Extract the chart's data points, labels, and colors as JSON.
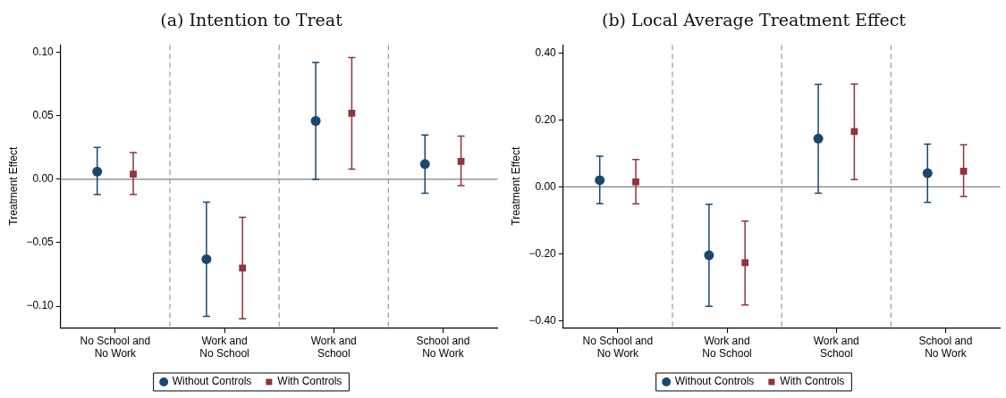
{
  "chart_data": [
    {
      "type": "scatter",
      "title": "(a) Intention to Treat",
      "ylabel": "Treatment Effect",
      "categories": [
        "No School and\nNo Work",
        "Work and\nNo School",
        "Work and\nSchool",
        "School and\nNo Work"
      ],
      "series": [
        {
          "name": "Without Controls",
          "color": "#1a476f",
          "marker": "circle",
          "values": [
            0.006,
            -0.063,
            0.046,
            0.012
          ],
          "errors": [
            [
              -0.012,
              0.025
            ],
            [
              -0.108,
              -0.018
            ],
            [
              0.0,
              0.092
            ],
            [
              -0.011,
              0.035
            ]
          ]
        },
        {
          "name": "With Controls",
          "color": "#90353b",
          "marker": "square",
          "values": [
            0.004,
            -0.07,
            0.052,
            0.014
          ],
          "errors": [
            [
              -0.012,
              0.021
            ],
            [
              -0.11,
              -0.03
            ],
            [
              0.008,
              0.096
            ],
            [
              -0.005,
              0.034
            ]
          ]
        }
      ],
      "ylim": [
        -0.117,
        0.106
      ],
      "yticks": [
        {
          "value": -0.1,
          "label": "−0.10"
        },
        {
          "value": -0.05,
          "label": "−0.05"
        },
        {
          "value": 0,
          "label": "0.00"
        },
        {
          "value": 0.05,
          "label": "0.05"
        },
        {
          "value": 0.1,
          "label": "0.10"
        }
      ],
      "ref_lines": [
        {
          "axis": "y",
          "value": 0,
          "color": "#808080",
          "line_style": "solid"
        }
      ],
      "legend": "bottom",
      "grid": false
    },
    {
      "type": "scatter",
      "title": "(b) Local Average Treatment Effect",
      "ylabel": "Treatment Effect",
      "categories": [
        "No School and\nNo Work",
        "Work and\nNo School",
        "Work and\nSchool",
        "School and\nNo Work"
      ],
      "series": [
        {
          "name": "Without Controls",
          "color": "#1a476f",
          "marker": "circle",
          "values": [
            0.02,
            -0.204,
            0.144,
            0.041
          ],
          "errors": [
            [
              -0.05,
              0.092
            ],
            [
              -0.356,
              -0.052
            ],
            [
              -0.019,
              0.306
            ],
            [
              -0.046,
              0.128
            ]
          ]
        },
        {
          "name": "With Controls",
          "color": "#90353b",
          "marker": "square",
          "values": [
            0.015,
            -0.226,
            0.165,
            0.047
          ],
          "errors": [
            [
              -0.051,
              0.082
            ],
            [
              -0.352,
              -0.102
            ],
            [
              0.022,
              0.307
            ],
            [
              -0.029,
              0.126
            ]
          ]
        }
      ],
      "ylim": [
        -0.42,
        0.424
      ],
      "yticks": [
        {
          "value": -0.4,
          "label": "−0.40"
        },
        {
          "value": -0.2,
          "label": "−0.20"
        },
        {
          "value": 0,
          "label": "0.00"
        },
        {
          "value": 0.2,
          "label": "0.20"
        },
        {
          "value": 0.4,
          "label": "0.40"
        }
      ],
      "ref_lines": [
        {
          "axis": "y",
          "value": 0,
          "color": "#808080",
          "line_style": "solid"
        }
      ],
      "legend": "bottom",
      "grid": false
    }
  ]
}
